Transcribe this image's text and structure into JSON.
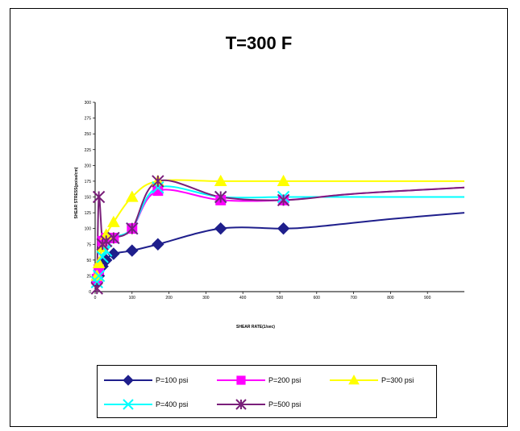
{
  "chart_data": {
    "type": "line",
    "title": "T=300 F",
    "xlabel": "SHEAR RATE(1/sec)",
    "ylabel": "SHEAR STRESS(poise/cm)",
    "xlim": [
      0,
      1000
    ],
    "ylim": [
      0,
      300
    ],
    "x_ticks": [
      0,
      100,
      200,
      300,
      400,
      500,
      600,
      700,
      800,
      900
    ],
    "y_ticks": [
      0,
      25,
      50,
      75,
      100,
      125,
      150,
      175,
      200,
      225,
      250,
      275,
      300
    ],
    "x_tick_labels": [
      "0",
      "100",
      "200",
      "300",
      "400",
      "500",
      "600",
      "700",
      "800",
      "900"
    ],
    "y_tick_labels": [
      "0",
      "25",
      "50",
      "75",
      "100",
      "125",
      "150",
      "175",
      "200",
      "225",
      "250",
      "275",
      "300"
    ],
    "grid": false,
    "legend_position": "bottom",
    "series": [
      {
        "name": "P=100 psi",
        "color": "#1f1f8c",
        "marker": "diamond",
        "x": [
          5,
          10,
          20,
          30,
          50,
          100,
          170,
          340,
          510,
          600,
          800,
          1000
        ],
        "y": [
          15,
          25,
          40,
          50,
          60,
          65,
          75,
          100,
          100,
          103,
          115,
          125
        ]
      },
      {
        "name": "P=200 psi",
        "color": "#ff00ff",
        "marker": "square",
        "x": [
          5,
          10,
          20,
          30,
          50,
          100,
          170,
          340,
          510,
          700,
          1000
        ],
        "y": [
          20,
          35,
          80,
          85,
          85,
          100,
          160,
          145,
          145,
          155,
          165
        ]
      },
      {
        "name": "P=300 psi",
        "color": "#ffff00",
        "marker": "triangle",
        "x": [
          5,
          10,
          20,
          30,
          50,
          100,
          170,
          340,
          510,
          700,
          1000
        ],
        "y": [
          25,
          45,
          70,
          90,
          110,
          150,
          175,
          175,
          175,
          175,
          175
        ]
      },
      {
        "name": "P=400 psi",
        "color": "#00ffff",
        "marker": "x",
        "x": [
          5,
          10,
          20,
          30,
          50,
          100,
          170,
          340,
          510,
          700,
          1000
        ],
        "y": [
          15,
          25,
          55,
          65,
          85,
          100,
          165,
          150,
          150,
          150,
          150
        ]
      },
      {
        "name": "P=500 psi",
        "color": "#7a1f7a",
        "marker": "star",
        "x": [
          5,
          10,
          20,
          30,
          50,
          100,
          170,
          340,
          510,
          700,
          1000
        ],
        "y": [
          5,
          150,
          75,
          80,
          85,
          100,
          175,
          150,
          145,
          155,
          165
        ]
      }
    ]
  }
}
